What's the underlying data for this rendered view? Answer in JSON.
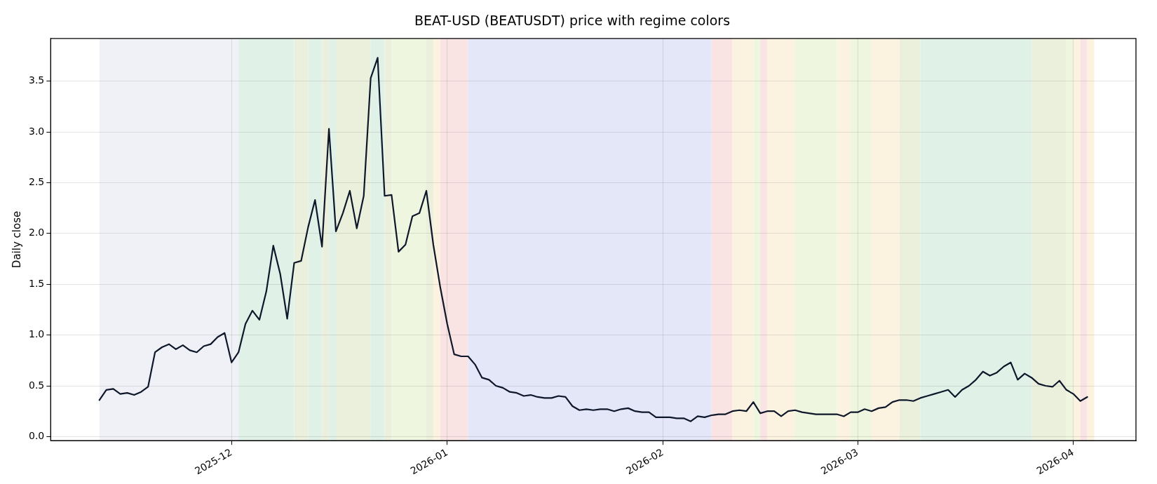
{
  "chart_data": {
    "type": "line",
    "title": "BEAT-USD (BEATUSDT) price with regime colors",
    "ylabel": "Daily close",
    "x": [
      "2025-11-12",
      "2025-11-13",
      "2025-11-14",
      "2025-11-15",
      "2025-11-16",
      "2025-11-17",
      "2025-11-18",
      "2025-11-19",
      "2025-11-20",
      "2025-11-21",
      "2025-11-22",
      "2025-11-23",
      "2025-11-24",
      "2025-11-25",
      "2025-11-26",
      "2025-11-27",
      "2025-11-28",
      "2025-11-29",
      "2025-11-30",
      "2025-12-01",
      "2025-12-02",
      "2025-12-03",
      "2025-12-04",
      "2025-12-05",
      "2025-12-06",
      "2025-12-07",
      "2025-12-08",
      "2025-12-09",
      "2025-12-10",
      "2025-12-11",
      "2025-12-12",
      "2025-12-13",
      "2025-12-14",
      "2025-12-15",
      "2025-12-16",
      "2025-12-17",
      "2025-12-18",
      "2025-12-19",
      "2025-12-20",
      "2025-12-21",
      "2025-12-22",
      "2025-12-23",
      "2025-12-24",
      "2025-12-25",
      "2025-12-26",
      "2025-12-27",
      "2025-12-28",
      "2025-12-29",
      "2025-12-30",
      "2025-12-31",
      "2026-01-01",
      "2026-01-02",
      "2026-01-03",
      "2026-01-04",
      "2026-01-05",
      "2026-01-06",
      "2026-01-07",
      "2026-01-08",
      "2026-01-09",
      "2026-01-10",
      "2026-01-11",
      "2026-01-12",
      "2026-01-13",
      "2026-01-14",
      "2026-01-15",
      "2026-01-16",
      "2026-01-17",
      "2026-01-18",
      "2026-01-19",
      "2026-01-20",
      "2026-01-21",
      "2026-01-22",
      "2026-01-23",
      "2026-01-24",
      "2026-01-25",
      "2026-01-26",
      "2026-01-27",
      "2026-01-28",
      "2026-01-29",
      "2026-01-30",
      "2026-01-31",
      "2026-02-01",
      "2026-02-02",
      "2026-02-03",
      "2026-02-04",
      "2026-02-05",
      "2026-02-06",
      "2026-02-07",
      "2026-02-08",
      "2026-02-09",
      "2026-02-10",
      "2026-02-11",
      "2026-02-12",
      "2026-02-13",
      "2026-02-14",
      "2026-02-15",
      "2026-02-16",
      "2026-02-17",
      "2026-02-18",
      "2026-02-19",
      "2026-02-20",
      "2026-02-21",
      "2026-02-22",
      "2026-02-23",
      "2026-02-24",
      "2026-02-25",
      "2026-02-26",
      "2026-02-27",
      "2026-02-28",
      "2026-03-01",
      "2026-03-02",
      "2026-03-03",
      "2026-03-04",
      "2026-03-05",
      "2026-03-06",
      "2026-03-07",
      "2026-03-08",
      "2026-03-09",
      "2026-03-10",
      "2026-03-11",
      "2026-03-12",
      "2026-03-13",
      "2026-03-14",
      "2026-03-15",
      "2026-03-16",
      "2026-03-17",
      "2026-03-18",
      "2026-03-19",
      "2026-03-20",
      "2026-03-21",
      "2026-03-22",
      "2026-03-23",
      "2026-03-24",
      "2026-03-25",
      "2026-03-26",
      "2026-03-27",
      "2026-03-28",
      "2026-03-29",
      "2026-03-30",
      "2026-03-31",
      "2026-04-01",
      "2026-04-02",
      "2026-04-03"
    ],
    "series": [
      {
        "color": "#0f172a",
        "values": [
          0.36,
          0.46,
          0.47,
          0.42,
          0.43,
          0.41,
          0.44,
          0.49,
          0.83,
          0.88,
          0.91,
          0.86,
          0.9,
          0.85,
          0.83,
          0.89,
          0.91,
          0.98,
          1.02,
          0.73,
          0.83,
          1.11,
          1.24,
          1.15,
          1.43,
          1.88,
          1.6,
          1.16,
          1.71,
          1.73,
          2.06,
          2.33,
          1.87,
          3.03,
          2.02,
          2.2,
          2.42,
          2.05,
          2.37,
          3.53,
          3.73,
          2.37,
          2.38,
          1.82,
          1.89,
          2.17,
          2.2,
          2.42,
          1.89,
          1.47,
          1.11,
          0.81,
          0.79,
          0.79,
          0.71,
          0.58,
          0.56,
          0.5,
          0.48,
          0.44,
          0.43,
          0.4,
          0.41,
          0.39,
          0.38,
          0.38,
          0.4,
          0.39,
          0.3,
          0.26,
          0.27,
          0.26,
          0.27,
          0.27,
          0.25,
          0.27,
          0.28,
          0.25,
          0.24,
          0.24,
          0.19,
          0.19,
          0.19,
          0.18,
          0.18,
          0.15,
          0.2,
          0.19,
          0.21,
          0.22,
          0.22,
          0.25,
          0.26,
          0.25,
          0.34,
          0.23,
          0.25,
          0.25,
          0.2,
          0.25,
          0.26,
          0.24,
          0.23,
          0.22,
          0.22,
          0.22,
          0.22,
          0.2,
          0.24,
          0.24,
          0.27,
          0.25,
          0.28,
          0.29,
          0.34,
          0.36,
          0.36,
          0.35,
          0.38,
          0.4,
          0.42,
          0.44,
          0.46,
          0.39,
          0.46,
          0.5,
          0.56,
          0.64,
          0.6,
          0.63,
          0.69,
          0.73,
          0.56,
          0.62,
          0.58,
          0.52,
          0.5,
          0.49,
          0.55,
          0.46,
          0.42,
          0.35,
          0.39
        ]
      }
    ],
    "xlim": [
      "2025-11-05",
      "2026-04-10"
    ],
    "xticks": [
      {
        "value": "2025-12",
        "label": "2025-12"
      },
      {
        "value": "2026-01",
        "label": "2026-01"
      },
      {
        "value": "2026-02",
        "label": "2026-02"
      },
      {
        "value": "2026-03",
        "label": "2026-03"
      },
      {
        "value": "2026-04",
        "label": "2026-04"
      }
    ],
    "ylim": [
      -0.04,
      3.92
    ],
    "yticks": [
      {
        "value": 0,
        "label": "0.0"
      },
      {
        "value": 0.5,
        "label": "0.5"
      },
      {
        "value": 1,
        "label": "1.0"
      },
      {
        "value": 1.5,
        "label": "1.5"
      },
      {
        "value": 2,
        "label": "2.0"
      },
      {
        "value": 2.5,
        "label": "2.5"
      },
      {
        "value": 3,
        "label": "3.0"
      },
      {
        "value": 3.5,
        "label": "3.5"
      }
    ],
    "grid": true,
    "legend": false,
    "marker": "none",
    "line_style": "solid",
    "bands": [
      {
        "axis": "x",
        "from": "2025-11-12",
        "to": "2025-12-02",
        "color": "#f0f1f6"
      },
      {
        "axis": "x",
        "from": "2025-12-02",
        "to": "2025-12-10",
        "color": "#e0f1e8"
      },
      {
        "axis": "x",
        "from": "2025-12-10",
        "to": "2025-12-12",
        "color": "#ebf0dc"
      },
      {
        "axis": "x",
        "from": "2025-12-12",
        "to": "2025-12-14",
        "color": "#e0f1e8"
      },
      {
        "axis": "x",
        "from": "2025-12-14",
        "to": "2025-12-15",
        "color": "#ebf0dc"
      },
      {
        "axis": "x",
        "from": "2025-12-15",
        "to": "2025-12-16",
        "color": "#e0f1e8"
      },
      {
        "axis": "x",
        "from": "2025-12-16",
        "to": "2025-12-21",
        "color": "#ebf0dc"
      },
      {
        "axis": "x",
        "from": "2025-12-21",
        "to": "2025-12-23",
        "color": "#e0f1e8"
      },
      {
        "axis": "x",
        "from": "2025-12-23",
        "to": "2025-12-24",
        "color": "#ebf0dc"
      },
      {
        "axis": "x",
        "from": "2025-12-24",
        "to": "2025-12-29",
        "color": "#eff6e0"
      },
      {
        "axis": "x",
        "from": "2025-12-29",
        "to": "2025-12-30",
        "color": "#ebf0dc"
      },
      {
        "axis": "x",
        "from": "2025-12-30",
        "to": "2025-12-31",
        "color": "#fbf2e0"
      },
      {
        "axis": "x",
        "from": "2025-12-31",
        "to": "2026-01-04",
        "color": "#f9e3e3"
      },
      {
        "axis": "x",
        "from": "2026-01-04",
        "to": "2026-02-08",
        "color": "#e3e7f8"
      },
      {
        "axis": "x",
        "from": "2026-02-08",
        "to": "2026-02-11",
        "color": "#f9e3e3"
      },
      {
        "axis": "x",
        "from": "2026-02-11",
        "to": "2026-02-14",
        "color": "#fbf2e0"
      },
      {
        "axis": "x",
        "from": "2026-02-14",
        "to": "2026-02-15",
        "color": "#eff6e0"
      },
      {
        "axis": "x",
        "from": "2026-02-15",
        "to": "2026-02-16",
        "color": "#f9e3e3"
      },
      {
        "axis": "x",
        "from": "2026-02-16",
        "to": "2026-02-20",
        "color": "#fbf2e0"
      },
      {
        "axis": "x",
        "from": "2026-02-20",
        "to": "2026-02-26",
        "color": "#eff6e0"
      },
      {
        "axis": "x",
        "from": "2026-02-26",
        "to": "2026-02-28",
        "color": "#fbf2e0"
      },
      {
        "axis": "x",
        "from": "2026-02-28",
        "to": "2026-03-03",
        "color": "#eff6e0"
      },
      {
        "axis": "x",
        "from": "2026-03-03",
        "to": "2026-03-07",
        "color": "#fbf2e0"
      },
      {
        "axis": "x",
        "from": "2026-03-07",
        "to": "2026-03-10",
        "color": "#ebf0dc"
      },
      {
        "axis": "x",
        "from": "2026-03-10",
        "to": "2026-03-26",
        "color": "#e0f1e8"
      },
      {
        "axis": "x",
        "from": "2026-03-26",
        "to": "2026-03-31",
        "color": "#ebf0dc"
      },
      {
        "axis": "x",
        "from": "2026-03-31",
        "to": "2026-04-01",
        "color": "#eff6e0"
      },
      {
        "axis": "x",
        "from": "2026-04-01",
        "to": "2026-04-02",
        "color": "#fbf2e0"
      },
      {
        "axis": "x",
        "from": "2026-04-02",
        "to": "2026-04-03",
        "color": "#f9e3e3"
      },
      {
        "axis": "x",
        "from": "2026-04-03",
        "to": "2026-04-04",
        "color": "#fbf2e0"
      }
    ]
  }
}
